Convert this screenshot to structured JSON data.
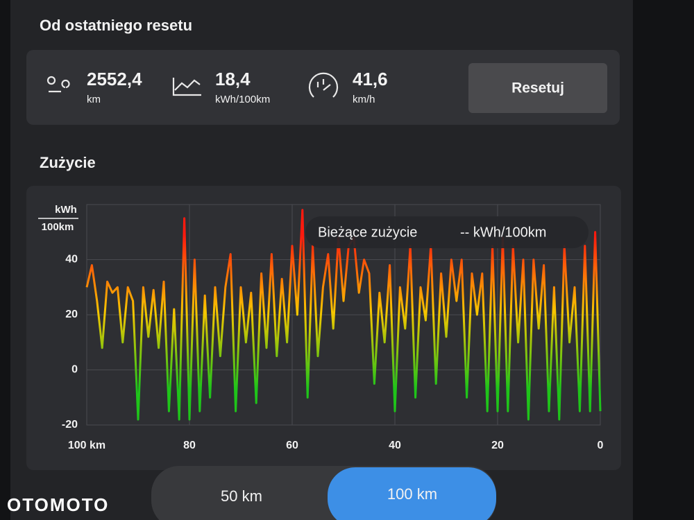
{
  "header": {
    "title": "Od ostatniego resetu"
  },
  "stats": [
    {
      "value": "2552,4",
      "unit": "km"
    },
    {
      "value": "18,4",
      "unit": "kWh/100km"
    },
    {
      "value": "41,6",
      "unit": "km/h"
    }
  ],
  "reset_button": "Resetuj",
  "section_title": "Zużycie",
  "chart_data": {
    "type": "line",
    "y_label": [
      "kWh",
      "100km"
    ],
    "annotations": [
      "Bieżące zużycie",
      "-- kWh/100km"
    ],
    "x": [
      100,
      99,
      98,
      97,
      96,
      95,
      94,
      93,
      92,
      91,
      90,
      89,
      88,
      87,
      86,
      85,
      84,
      83,
      82,
      81,
      80,
      79,
      78,
      77,
      76,
      75,
      74,
      73,
      72,
      71,
      70,
      69,
      68,
      67,
      66,
      65,
      64,
      63,
      62,
      61,
      60,
      59,
      58,
      57,
      56,
      55,
      54,
      53,
      52,
      51,
      50,
      49,
      48,
      47,
      46,
      45,
      44,
      43,
      42,
      41,
      40,
      39,
      38,
      37,
      36,
      35,
      34,
      33,
      32,
      31,
      30,
      29,
      28,
      27,
      26,
      25,
      24,
      23,
      22,
      21,
      20,
      19,
      18,
      17,
      16,
      15,
      14,
      13,
      12,
      11,
      10,
      9,
      8,
      7,
      6,
      5,
      4,
      3,
      2,
      1,
      0
    ],
    "values": [
      30,
      38,
      25,
      8,
      32,
      28,
      30,
      10,
      30,
      25,
      -18,
      30,
      12,
      29,
      8,
      32,
      -15,
      22,
      -18,
      55,
      -18,
      40,
      -15,
      27,
      -10,
      30,
      5,
      30,
      42,
      -15,
      30,
      10,
      28,
      -12,
      35,
      8,
      42,
      5,
      33,
      10,
      45,
      20,
      58,
      -10,
      45,
      5,
      30,
      42,
      15,
      48,
      25,
      45,
      48,
      28,
      40,
      35,
      -5,
      28,
      10,
      38,
      -15,
      30,
      15,
      45,
      -10,
      30,
      18,
      45,
      -5,
      35,
      12,
      40,
      25,
      40,
      -10,
      35,
      20,
      35,
      -15,
      45,
      -15,
      48,
      -15,
      45,
      10,
      40,
      -18,
      40,
      15,
      38,
      -15,
      30,
      -18,
      45,
      10,
      30,
      -15,
      45,
      -15,
      50,
      -15
    ],
    "colors": [
      "#ff1a0e",
      "#f7c600",
      "#1fc41a"
    ],
    "xlim": [
      100,
      0
    ],
    "xticks": [
      {
        "value": 100,
        "label": "100 km"
      },
      80,
      60,
      40,
      20,
      0
    ],
    "ylim": [
      -20,
      60
    ],
    "yticks": [
      -20,
      0,
      20,
      40
    ],
    "grid": true
  },
  "range_toggle": [
    "50 km",
    "100 km"
  ],
  "watermark": "OTOMOTO"
}
